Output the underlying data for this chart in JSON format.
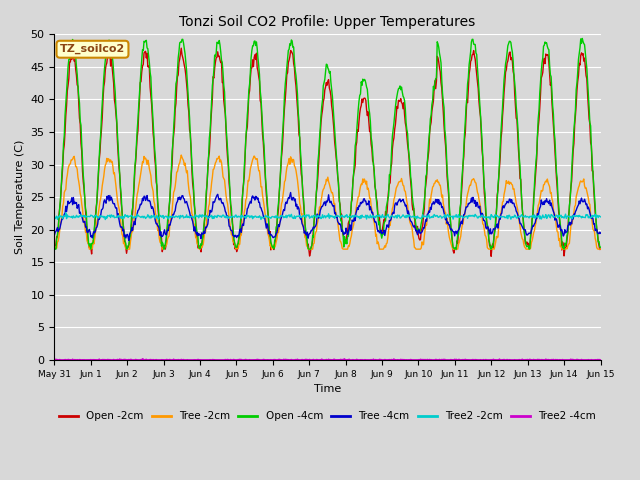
{
  "title": "Tonzi Soil CO2 Profile: Upper Temperatures",
  "xlabel": "Time",
  "ylabel": "Soil Temperature (C)",
  "ylim": [
    0,
    50
  ],
  "yticks": [
    0,
    5,
    10,
    15,
    20,
    25,
    30,
    35,
    40,
    45,
    50
  ],
  "fig_bg": "#d8d8d8",
  "plot_bg": "#d8d8d8",
  "annotation_text": "TZ_soilco2",
  "annotation_bg": "#ffffcc",
  "annotation_border": "#cc8800",
  "legend_entries": [
    "Open -2cm",
    "Tree -2cm",
    "Open -4cm",
    "Tree -4cm",
    "Tree2 -2cm",
    "Tree2 -4cm"
  ],
  "line_colors": [
    "#cc0000",
    "#ff9900",
    "#00cc00",
    "#0000cc",
    "#00cccc",
    "#cc00cc"
  ],
  "tick_labels": [
    "May 31",
    "Jun 1",
    "Jun 2",
    "Jun 3",
    "Jun 4",
    "Jun 5",
    "Jun 6",
    "Jun 7",
    "Jun 8",
    "Jun 9",
    "Jun 10",
    "Jun 11",
    "Jun 12",
    "Jun 13",
    "Jun 14",
    "Jun 15"
  ],
  "num_days": 15,
  "ppd": 48
}
